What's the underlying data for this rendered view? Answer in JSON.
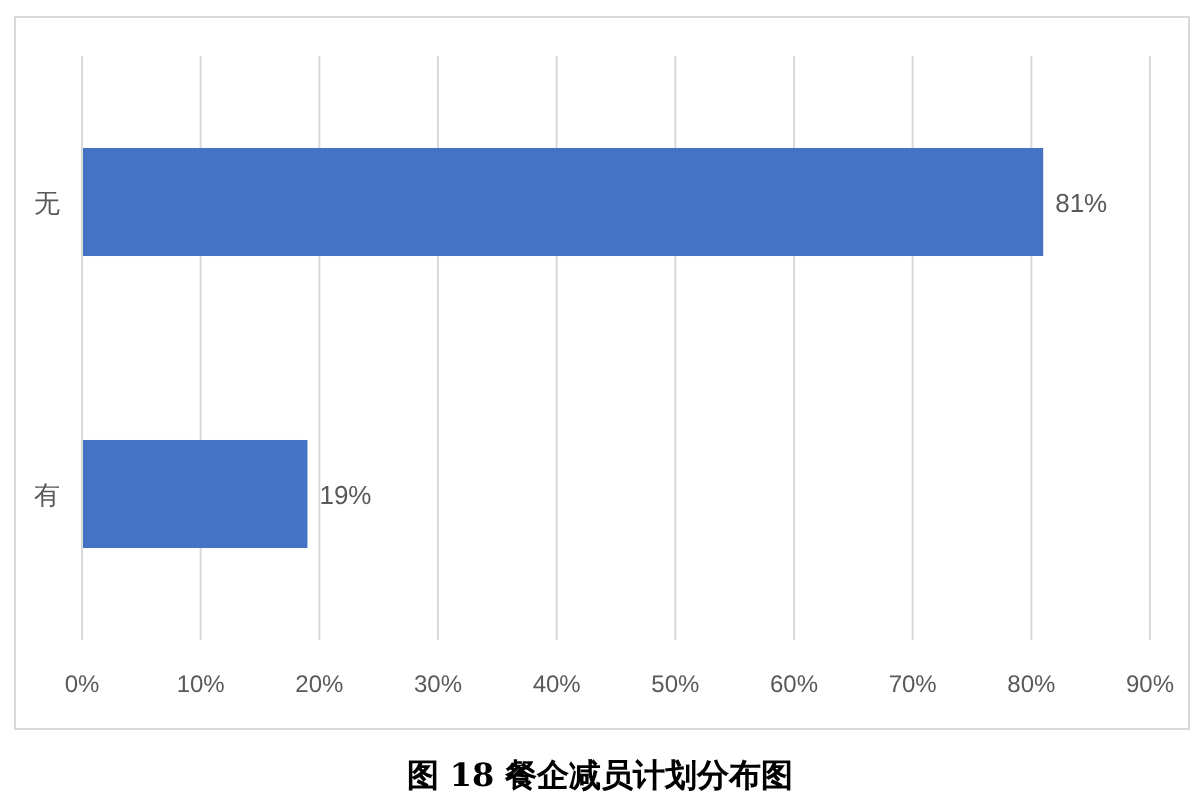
{
  "chart_data": {
    "type": "bar",
    "orientation": "horizontal",
    "title": "图 18 餐企减员计划分布图",
    "categories": [
      "无",
      "有"
    ],
    "values": [
      81,
      19
    ],
    "value_labels": [
      "81%",
      "19%"
    ],
    "color": "#4472c4",
    "xlim": [
      0,
      90
    ],
    "xticks": [
      {
        "value": 0,
        "label": "0%"
      },
      {
        "value": 10,
        "label": "10%"
      },
      {
        "value": 20,
        "label": "20%"
      },
      {
        "value": 30,
        "label": "30%"
      },
      {
        "value": 40,
        "label": "40%"
      },
      {
        "value": 50,
        "label": "50%"
      },
      {
        "value": 60,
        "label": "60%"
      },
      {
        "value": 70,
        "label": "70%"
      },
      {
        "value": 80,
        "label": "80%"
      },
      {
        "value": 90,
        "label": "90%"
      }
    ],
    "grid": "x"
  }
}
